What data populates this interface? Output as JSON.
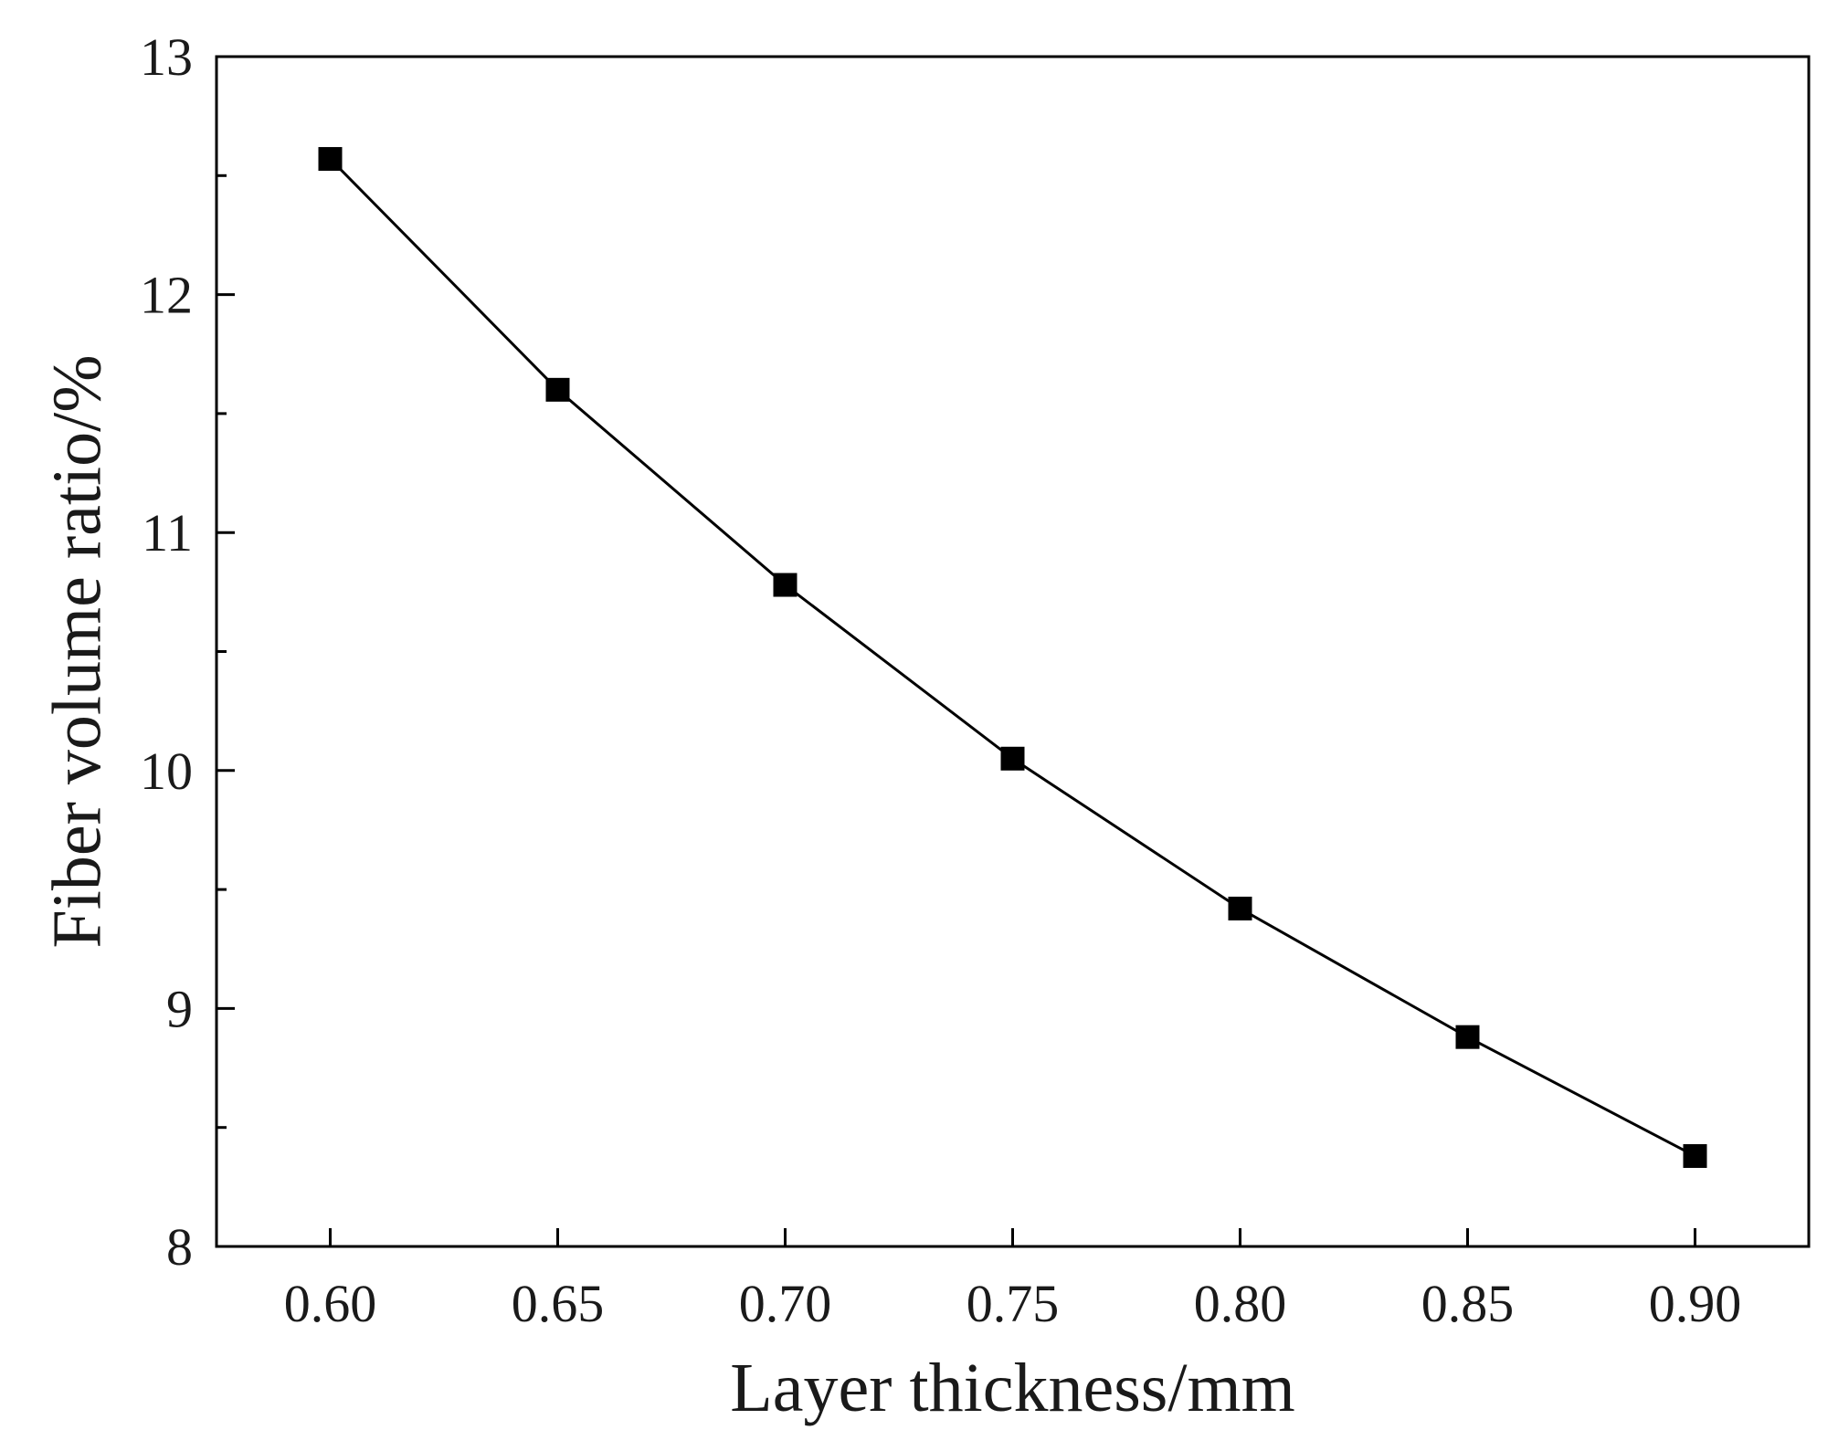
{
  "chart_data": {
    "type": "line",
    "title": "",
    "xlabel": "Layer thickness/mm",
    "ylabel": "Fiber volume ratio/%",
    "xlim": [
      0.575,
      0.925
    ],
    "ylim": [
      8,
      13
    ],
    "x_ticks": [
      0.6,
      0.65,
      0.7,
      0.75,
      0.8,
      0.85,
      0.9
    ],
    "x_tick_labels": [
      "0.60",
      "0.65",
      "0.70",
      "0.75",
      "0.80",
      "0.85",
      "0.90"
    ],
    "y_ticks": [
      8,
      9,
      10,
      11,
      12,
      13
    ],
    "y_tick_labels": [
      "8",
      "9",
      "10",
      "11",
      "12",
      "13"
    ],
    "y_minor_ticks": [
      8.5,
      9.5,
      10.5,
      11.5,
      12.5
    ],
    "grid": false,
    "legend": "none",
    "marker": "square",
    "line_color": "#000000",
    "marker_color": "#000000",
    "series": [
      {
        "x": [
          0.6,
          0.65,
          0.7,
          0.75,
          0.8,
          0.85,
          0.9
        ],
        "values": [
          12.57,
          11.6,
          10.78,
          10.05,
          9.42,
          8.88,
          8.38
        ]
      }
    ]
  }
}
